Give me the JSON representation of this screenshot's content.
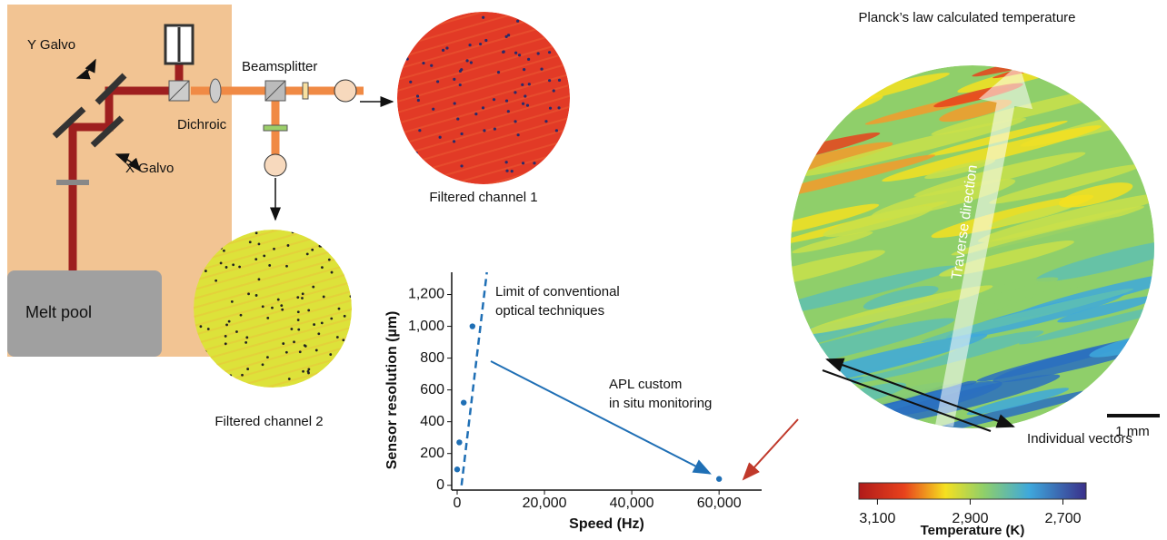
{
  "diagram": {
    "y_galvo": "Y Galvo",
    "x_galvo": "X Galvo",
    "beamsplitter": "Beamsplitter",
    "dichroic": "Dichroic",
    "melt_pool": "Melt pool",
    "channel_1": "Filtered channel 1",
    "channel_2": "Filtered channel 2"
  },
  "chart_data": {
    "type": "scatter",
    "x_label": "Speed (Hz)",
    "y_label": "Sensor resolution (µm)",
    "x": [
      0,
      500,
      1500,
      3500,
      60000
    ],
    "values": [
      100,
      270,
      520,
      1000,
      40
    ],
    "color": "#1f6fb5",
    "limit_line": {
      "x": [
        1000,
        6800
      ],
      "values": [
        0,
        1340
      ],
      "color": "#1f6fb5"
    },
    "annotations": [
      [
        "Limit of conventional",
        "optical techniques"
      ],
      [
        "APL custom",
        "in situ monitoring"
      ]
    ],
    "xlim": [
      -1000,
      70000
    ],
    "ylim": [
      -30,
      1340
    ],
    "xticks": [
      0,
      {
        "value": 20000,
        "label": "20,000"
      },
      {
        "value": 40000,
        "label": "40,000"
      },
      {
        "value": 60000,
        "label": "60,000"
      }
    ],
    "yticks": [
      0,
      200,
      400,
      600,
      800,
      {
        "value": 1000,
        "label": "1,000"
      },
      {
        "value": 1200,
        "label": "1,200"
      }
    ]
  },
  "temperature_map": {
    "title": "Planck’s law calculated temperature",
    "direction": "Traverse direction",
    "scale": "1 mm",
    "vectors": "Individual vectors",
    "colorbar": {
      "title": "Temperature (K)",
      "lim": [
        3140,
        2650
      ],
      "ticks": [
        {
          "value": 3100,
          "label": "3,100"
        },
        {
          "value": 2900,
          "label": "2,900"
        },
        {
          "value": 2700,
          "label": "2,700"
        }
      ]
    }
  }
}
